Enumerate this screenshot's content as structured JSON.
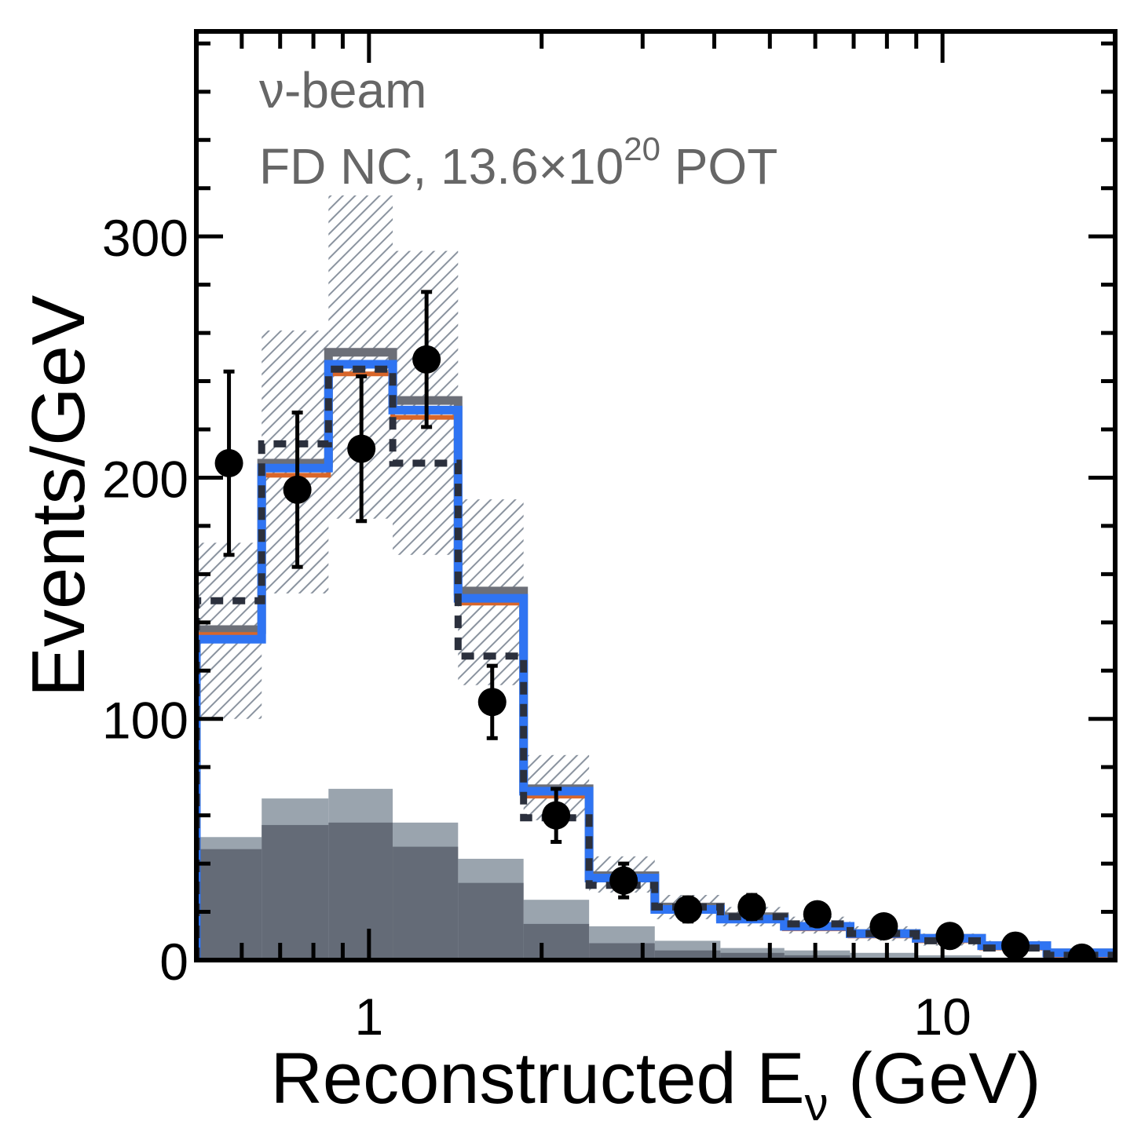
{
  "chart_data": {
    "type": "bar",
    "xscale": "log",
    "xlim": [
      0.5,
      20
    ],
    "ylim": [
      0,
      385
    ],
    "xlabel_main": "Reconstructed E",
    "xlabel_sub": "ν",
    "xlabel_tail": " (GeV)",
    "ylabel": "Events/GeV",
    "yticks": [
      "0",
      "100",
      "200",
      "300"
    ],
    "yticks_values": [
      0,
      100,
      200,
      300
    ],
    "xticks": [
      "1",
      "10"
    ],
    "xticks_values": [
      1,
      10
    ],
    "annotation_line1": "ν-beam",
    "annotation_line2_prefix": "FD NC, 13.6×10",
    "annotation_line2_sup": "20",
    "annotation_line2_suffix": " POT",
    "bin_edges": [
      0.5,
      0.65,
      0.85,
      1.1,
      1.43,
      1.86,
      2.42,
      3.15,
      4.1,
      5.3,
      6.9,
      9.0,
      11.7,
      15.2,
      20.0
    ],
    "series": [
      {
        "values": [
          137,
          206,
          252,
          232,
          153,
          71,
          35,
          22,
          18,
          14,
          11,
          9,
          6,
          3
        ]
      },
      {
        "values": [
          135,
          201,
          243,
          225,
          148,
          68,
          34,
          21,
          17,
          13,
          10,
          8,
          5,
          2
        ]
      },
      {
        "values": [
          133,
          204,
          247,
          228,
          150,
          70,
          34,
          21,
          17,
          14,
          11,
          9,
          6,
          3
        ]
      },
      {
        "values": [
          149,
          214,
          245,
          206,
          126,
          59,
          31,
          22,
          18,
          15,
          11,
          8,
          5,
          2
        ]
      },
      {
        "values": [
          51,
          67,
          71,
          57,
          42,
          25,
          14,
          8,
          5,
          4,
          3,
          2,
          1,
          1
        ]
      },
      {
        "values": [
          46,
          56,
          57,
          47,
          32,
          15,
          7,
          4,
          3,
          2,
          1,
          1,
          1,
          0
        ]
      }
    ],
    "uncertainty_band": {
      "low": [
        100,
        152,
        183,
        168,
        114,
        58,
        28,
        17,
        14,
        11,
        8,
        6,
        4,
        2
      ],
      "high": [
        173,
        261,
        317,
        294,
        191,
        85,
        43,
        27,
        22,
        18,
        14,
        11,
        8,
        4
      ]
    },
    "data_points": {
      "x": [
        0.57,
        0.75,
        0.97,
        1.26,
        1.64,
        2.12,
        2.78,
        3.6,
        4.65,
        6.05,
        7.9,
        10.3,
        13.4,
        17.5
      ],
      "y": [
        206,
        195,
        212,
        249,
        107,
        60,
        33,
        21,
        22,
        19,
        14,
        10,
        6,
        1
      ],
      "yerr": [
        38,
        32,
        30,
        28,
        15,
        11,
        7,
        5,
        5,
        4,
        4,
        3,
        2,
        1
      ]
    },
    "colors": {
      "total": "#6c6f78",
      "orange": "#d8662a",
      "blue": "#2f74f2",
      "dashed": "#2b303d",
      "band": "#8a939f",
      "bg_light": "#9aa4ae",
      "bg_dark": "#646b77",
      "points": "#000000"
    },
    "grid": false,
    "legend": "none"
  }
}
